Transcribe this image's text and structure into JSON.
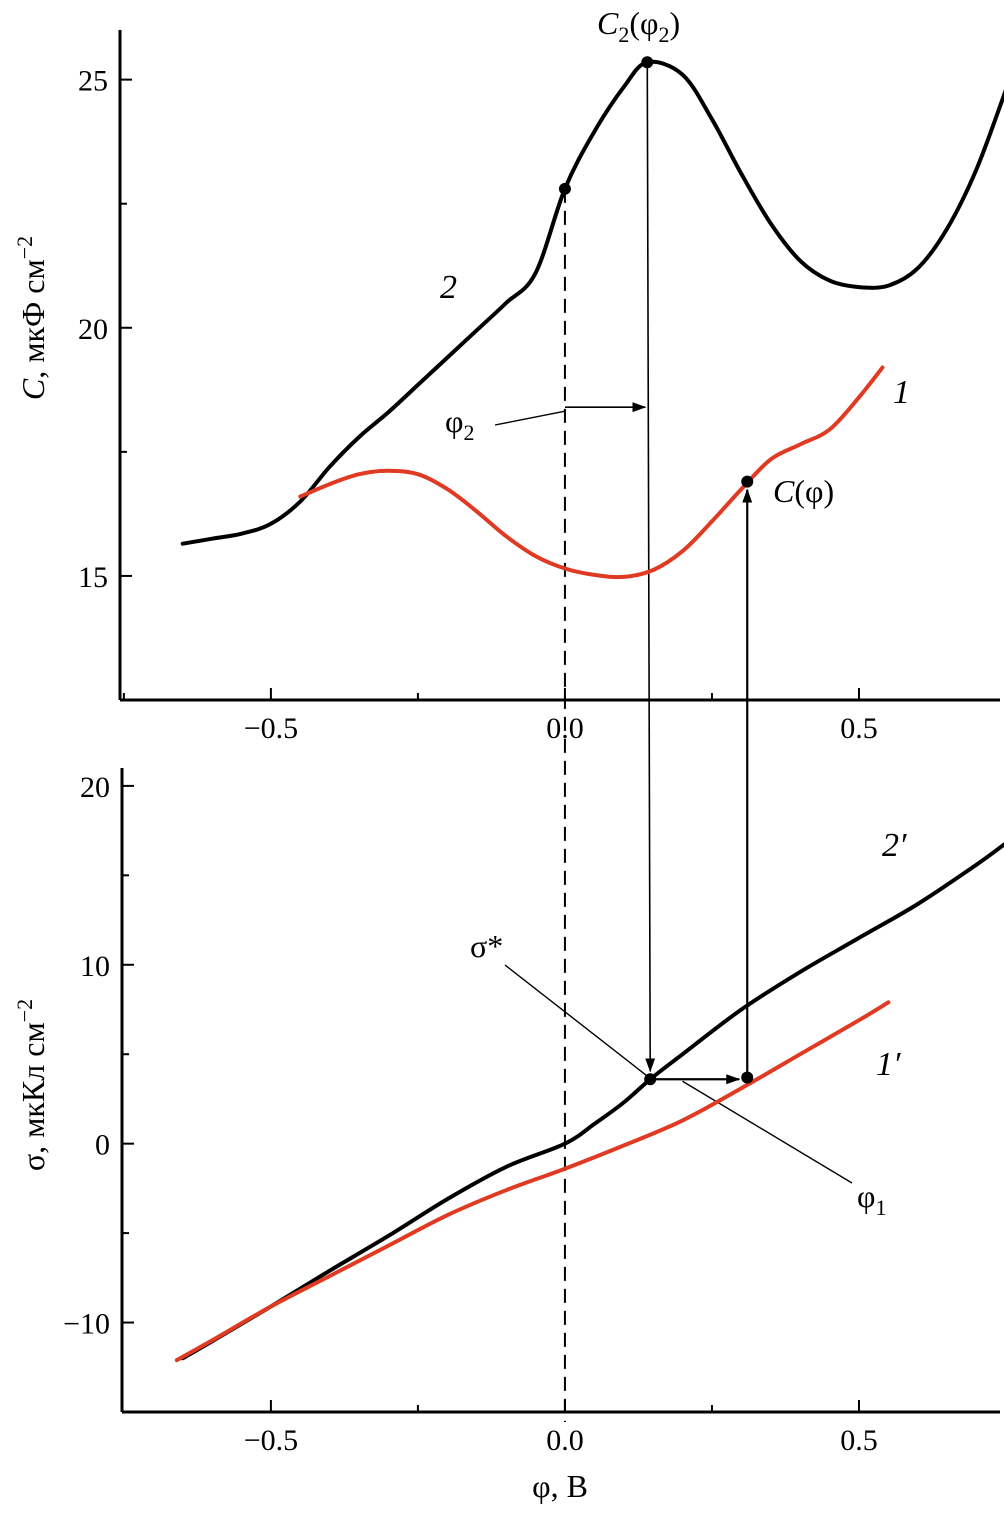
{
  "colors": {
    "black_series": "#000000",
    "red_series": "#e03a22",
    "axis": "#000000"
  },
  "chart_data": [
    {
      "type": "line",
      "panel": "top",
      "ylabel_main": "C",
      "ylabel_rest": ", мкФ см",
      "ylabel_exp": "−2",
      "xlim": [
        -0.76,
        0.75
      ],
      "ylim": [
        12.5,
        26.0
      ],
      "x_ticks": [
        -0.5,
        0.0,
        0.5
      ],
      "x_tick_labels": [
        "−0.5",
        "0.0",
        "0.5"
      ],
      "y_ticks": [
        15,
        20,
        25
      ],
      "y_tick_labels": [
        "15",
        "20",
        "25"
      ],
      "series": [
        {
          "name": "2",
          "color": "#000000",
          "points": [
            [
              -0.65,
              15.65
            ],
            [
              -0.6,
              15.75
            ],
            [
              -0.55,
              15.85
            ],
            [
              -0.5,
              16.05
            ],
            [
              -0.45,
              16.5
            ],
            [
              -0.4,
              17.2
            ],
            [
              -0.35,
              17.8
            ],
            [
              -0.3,
              18.3
            ],
            [
              -0.25,
              18.85
            ],
            [
              -0.2,
              19.4
            ],
            [
              -0.15,
              19.95
            ],
            [
              -0.1,
              20.5
            ],
            [
              -0.05,
              21.1
            ],
            [
              0.0,
              22.8
            ],
            [
              0.05,
              23.95
            ],
            [
              0.1,
              24.85
            ],
            [
              0.14,
              25.35
            ],
            [
              0.2,
              25.1
            ],
            [
              0.25,
              24.2
            ],
            [
              0.3,
              23.1
            ],
            [
              0.35,
              22.1
            ],
            [
              0.4,
              21.35
            ],
            [
              0.45,
              20.95
            ],
            [
              0.5,
              20.82
            ],
            [
              0.55,
              20.85
            ],
            [
              0.6,
              21.2
            ],
            [
              0.65,
              22.0
            ],
            [
              0.7,
              23.2
            ],
            [
              0.75,
              24.8
            ]
          ]
        },
        {
          "name": "1",
          "color": "#e03a22",
          "points": [
            [
              -0.45,
              16.6
            ],
            [
              -0.4,
              16.85
            ],
            [
              -0.35,
              17.05
            ],
            [
              -0.3,
              17.12
            ],
            [
              -0.25,
              17.05
            ],
            [
              -0.2,
              16.75
            ],
            [
              -0.15,
              16.3
            ],
            [
              -0.1,
              15.8
            ],
            [
              -0.05,
              15.4
            ],
            [
              0.0,
              15.15
            ],
            [
              0.05,
              15.02
            ],
            [
              0.1,
              14.98
            ],
            [
              0.15,
              15.12
            ],
            [
              0.2,
              15.5
            ],
            [
              0.25,
              16.1
            ],
            [
              0.3,
              16.75
            ],
            [
              0.35,
              17.35
            ],
            [
              0.4,
              17.65
            ],
            [
              0.45,
              17.95
            ],
            [
              0.5,
              18.6
            ],
            [
              0.54,
              19.2
            ]
          ]
        }
      ],
      "curve_labels": {
        "black": "2",
        "red": "1"
      },
      "annotations": {
        "peak_label_main": "C",
        "peak_label_sub": "2",
        "peak_label_rest": "(φ",
        "peak_label_sub2": "2",
        "peak_label_close": ")",
        "phi2_main": "φ",
        "phi2_sub": "2",
        "cphi_main": "C",
        "cphi_rest": "(φ)"
      },
      "markers": [
        [
          0.0,
          22.8
        ],
        [
          0.14,
          25.35
        ],
        [
          0.31,
          16.9
        ]
      ]
    },
    {
      "type": "line",
      "panel": "bottom",
      "xlabel": "φ, В",
      "ylabel_main": "σ, мкКл см",
      "ylabel_exp": "−2",
      "xlim": [
        -0.76,
        0.75
      ],
      "ylim": [
        -15.0,
        21.0
      ],
      "x_ticks": [
        -0.5,
        0.0,
        0.5
      ],
      "x_tick_labels": [
        "−0.5",
        "0.0",
        "0.5"
      ],
      "y_ticks": [
        -10,
        0,
        10,
        20
      ],
      "y_tick_labels": [
        "−10",
        "0",
        "10",
        "20"
      ],
      "series": [
        {
          "name": "2′",
          "color": "#000000",
          "points": [
            [
              -0.65,
              -12.0
            ],
            [
              -0.6,
              -11.05
            ],
            [
              -0.5,
              -9.1
            ],
            [
              -0.4,
              -7.1
            ],
            [
              -0.3,
              -5.15
            ],
            [
              -0.2,
              -3.1
            ],
            [
              -0.1,
              -1.3
            ],
            [
              0.0,
              0.0
            ],
            [
              0.05,
              1.1
            ],
            [
              0.1,
              2.3
            ],
            [
              0.145,
              3.6
            ],
            [
              0.2,
              5.0
            ],
            [
              0.3,
              7.5
            ],
            [
              0.4,
              9.6
            ],
            [
              0.5,
              11.5
            ],
            [
              0.6,
              13.4
            ],
            [
              0.7,
              15.6
            ],
            [
              0.75,
              16.8
            ]
          ]
        },
        {
          "name": "1′",
          "color": "#e03a22",
          "points": [
            [
              -0.66,
              -12.1
            ],
            [
              -0.6,
              -11.0
            ],
            [
              -0.5,
              -9.1
            ],
            [
              -0.4,
              -7.4
            ],
            [
              -0.3,
              -5.7
            ],
            [
              -0.2,
              -4.0
            ],
            [
              -0.1,
              -2.6
            ],
            [
              0.0,
              -1.4
            ],
            [
              0.1,
              -0.1
            ],
            [
              0.2,
              1.3
            ],
            [
              0.3,
              3.1
            ],
            [
              0.4,
              5.0
            ],
            [
              0.5,
              6.9
            ],
            [
              0.55,
              7.9
            ]
          ]
        }
      ],
      "curve_labels": {
        "black": "2′",
        "red": "1′"
      },
      "annotations": {
        "sigma_star": "σ*",
        "phi1_main": "φ",
        "phi1_sub": "1"
      },
      "markers": [
        [
          0.145,
          3.6
        ],
        [
          0.31,
          3.7
        ]
      ]
    }
  ]
}
